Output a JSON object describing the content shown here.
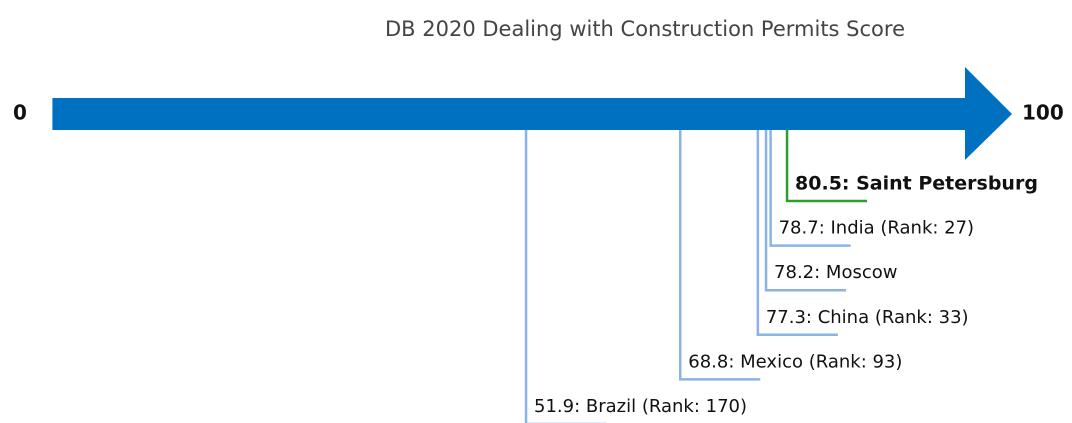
{
  "chart_data": {
    "type": "numberline",
    "title": "DB 2020 Dealing with Construction Permits Score",
    "xlim": [
      0,
      100
    ],
    "xticks": [
      0,
      100
    ],
    "axis_color": "#0070c0",
    "values": [
      80.5,
      78.7,
      78.2,
      77.3,
      68.8,
      51.9
    ],
    "value_labels": [
      "80.5: Saint Petersburg",
      "78.7: India (Rank: 27)",
      "78.2: Moscow",
      "77.3: China (Rank: 33)",
      "68.8: Mexico (Rank: 93)",
      "51.9: Brazil (Rank: 170)"
    ],
    "colors": [
      "#2ca02c",
      "#8ab4e8",
      "#8ab4e8",
      "#8ab4e8",
      "#8ab4e8",
      "#8ab4e8"
    ],
    "highlight_index": 0
  }
}
